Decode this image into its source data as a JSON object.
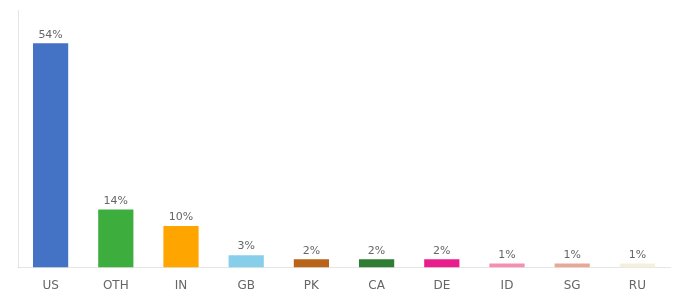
{
  "chart_data": {
    "type": "bar",
    "categories": [
      "US",
      "OTH",
      "IN",
      "GB",
      "PK",
      "CA",
      "DE",
      "ID",
      "SG",
      "RU"
    ],
    "values": [
      54,
      14,
      10,
      3,
      2,
      2,
      2,
      1,
      1,
      1
    ],
    "value_labels": [
      "54%",
      "14%",
      "10%",
      "3%",
      "2%",
      "2%",
      "2%",
      "1%",
      "1%",
      "1%"
    ],
    "colors": [
      "#4472C4",
      "#3DAD3D",
      "#FFA500",
      "#87CEEB",
      "#B8651A",
      "#2E7D32",
      "#E91E8C",
      "#F48FB1",
      "#E8A898",
      "#F5F0DC"
    ],
    "ylim": [
      0,
      62
    ],
    "data_labels": true,
    "tick_labels": "x",
    "grid": false
  }
}
